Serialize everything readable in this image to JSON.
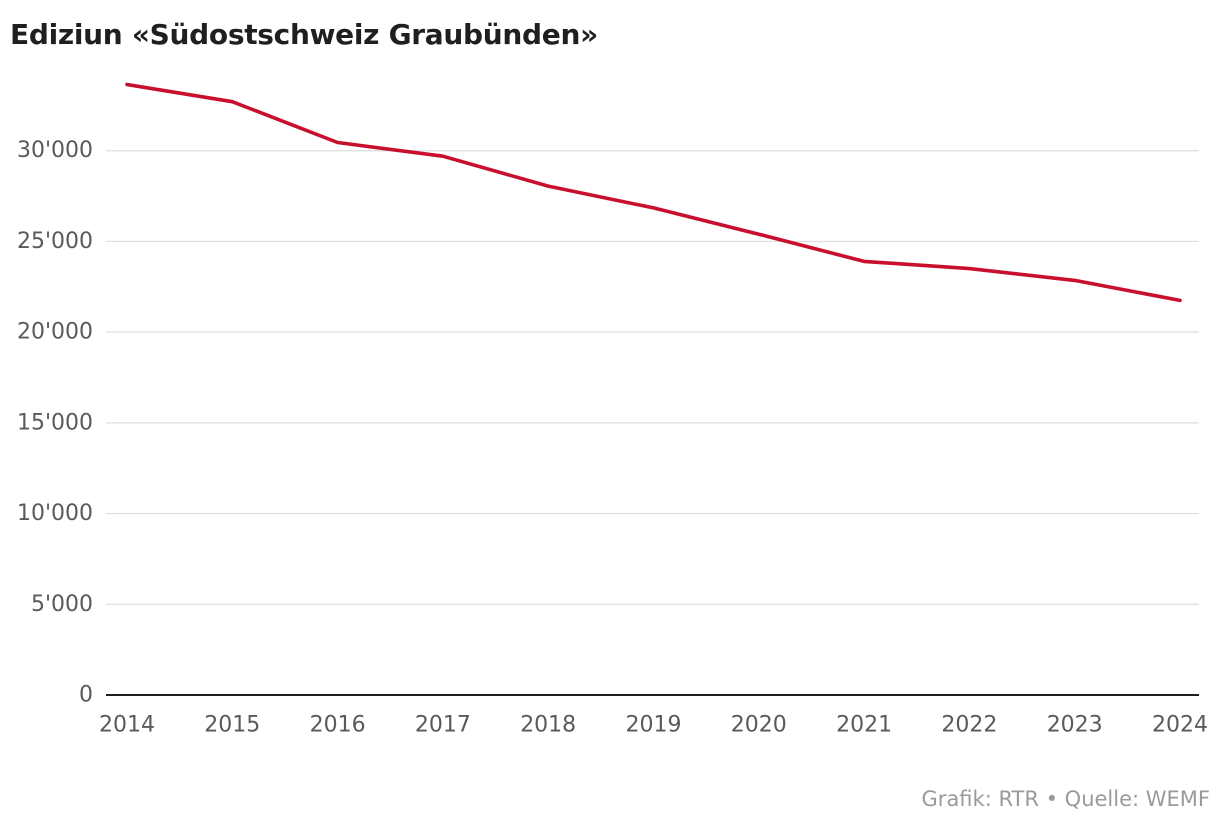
{
  "title": "Ediziun «Südostschweiz Graubünden»",
  "footer": "Grafik: RTR • Quelle: WEMF",
  "colors": {
    "line": "#c8102e",
    "grid": "#dedede",
    "axis": "#1f1f1f",
    "text": "#5a5a5a",
    "footer": "#9a9a9a"
  },
  "chart_data": {
    "type": "line",
    "title": "Ediziun «Südostschweiz Graubünden»",
    "xlabel": "",
    "ylabel": "",
    "x": [
      "2014",
      "2015",
      "2016",
      "2017",
      "2018",
      "2019",
      "2020",
      "2021",
      "2022",
      "2023",
      "2024"
    ],
    "series": [
      {
        "values": [
          33650,
          32700,
          30450,
          29700,
          28050,
          26850,
          25400,
          23900,
          23500,
          22850,
          21750
        ]
      }
    ],
    "ylim": [
      0,
      35000
    ],
    "y_ticks": [
      0,
      5000,
      10000,
      15000,
      20000,
      25000,
      30000
    ],
    "y_tick_labels": [
      "0",
      "5'000",
      "10'000",
      "15'000",
      "20'000",
      "25'000",
      "30'000"
    ],
    "grid": true,
    "legend": "none"
  }
}
